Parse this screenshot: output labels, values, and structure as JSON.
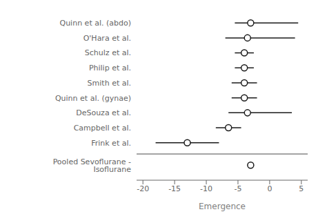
{
  "chart_data": {
    "type": "forest",
    "xlabel": "Emergence",
    "categories": [
      "Quinn et al. (abdo)",
      "O'Hara et al.",
      "Schulz et al.",
      "Philip et al.",
      "Smith et al.",
      "Quinn et al. (gynae)",
      "DeSouza et al.",
      "Campbell et al.",
      "Frink et al.",
      "Pooled Sevoflurane - Isoflurane"
    ],
    "values": [
      -3.0,
      -3.5,
      -4.0,
      -4.0,
      -4.0,
      -4.0,
      -3.5,
      -6.5,
      -13.0,
      -3.0
    ],
    "ci_low": [
      -5.5,
      -7.0,
      -5.5,
      -5.5,
      -6.0,
      -6.0,
      -6.5,
      -8.5,
      -18.0,
      null
    ],
    "ci_high": [
      4.5,
      4.0,
      -2.5,
      -2.5,
      -2.0,
      -2.0,
      3.5,
      -4.5,
      -8.0,
      null
    ],
    "xlim": [
      -21,
      6
    ],
    "xticks": [
      -20,
      -15,
      -10,
      -5,
      0,
      5
    ],
    "color": "#1a1a1a"
  }
}
